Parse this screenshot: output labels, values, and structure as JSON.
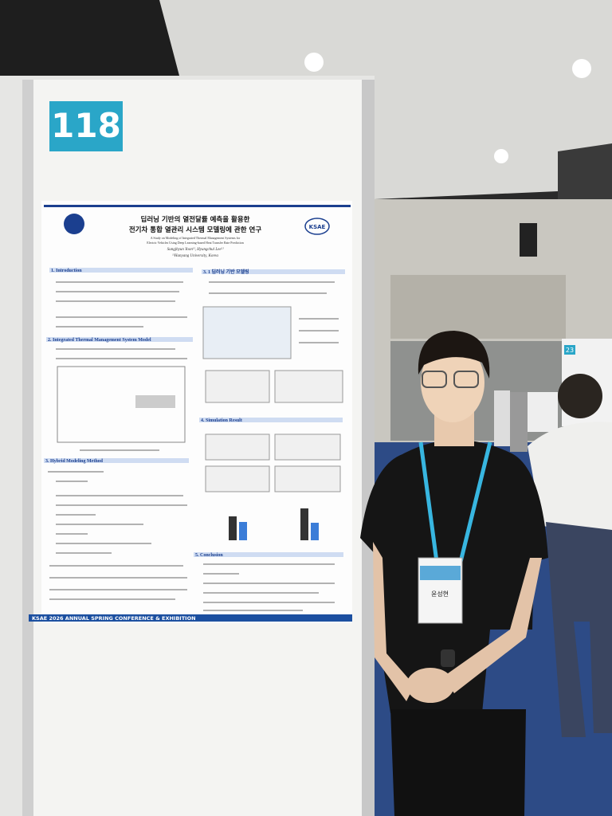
{
  "booth_number": "118",
  "poster": {
    "title_lines": [
      "딥러닝 기반의 열전달률 예측을 활용한",
      "전기차 통합 열관리 시스템 모델링에 관한 연구"
    ],
    "subtitle_lines": [
      "A Study on Modeling of Integrated Thermal Management Systems for",
      "Electric Vehicles Using Deep Learning-based Heat Transfer Rate Prediction"
    ],
    "authors": "Sungjhyun Yoon¹⁾, Hyungchul Lee²⁾",
    "affiliation": "¹⁾Hanyang University, Korea",
    "logo": "KSAE",
    "sections": [
      "1. Introduction",
      "2. Integrated Thermal Management System Model",
      "3. Hybrid Modeling Method",
      "3. 1 딥러닝 기반 모델링",
      "4. Simulation Result",
      "5. Conclusion"
    ],
    "footer": "KSAE 2026 ANNUAL SPRING CONFERENCE & EXHIBITION"
  },
  "badge_name": "윤성현",
  "side_sign_number": "23"
}
